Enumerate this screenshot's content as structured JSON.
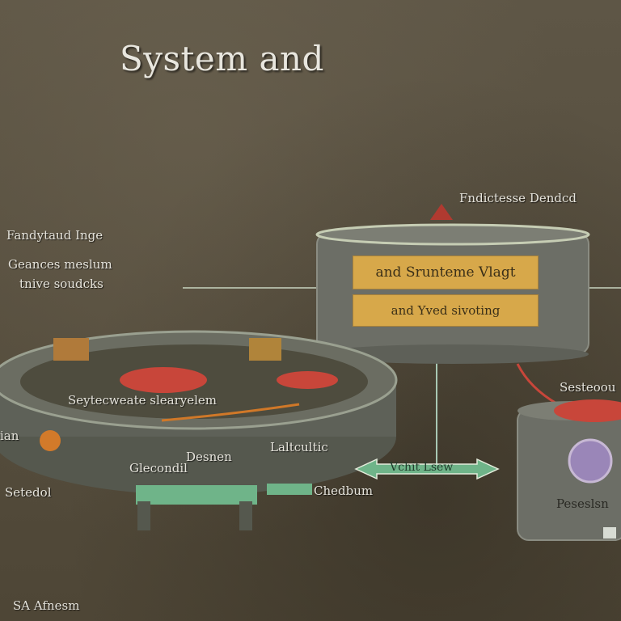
{
  "title": "System and",
  "labels": {
    "top_right": "Fndictesse Dendcd",
    "left_1": "Fandytaud Inge",
    "left_2": "Geances meslum",
    "left_3": "tnive soudcks",
    "tank_line_1": "and Srunteme Vlagt",
    "tank_line_2": "and Yved sivoting",
    "platform_center": "Seytecweate slearyelem",
    "left_edge": "ian",
    "platform_low_1": "Desnen",
    "platform_low_2": "Glecondil",
    "platform_right": "Laltcultic",
    "bottom_left": "Setedol",
    "platform_front": "Chedbum",
    "arrow": "Vchit Lsew",
    "right_top": "Sesteoou",
    "right_bottom": "Peseslsn",
    "corner": "SA Afnesm"
  },
  "colors": {
    "background": "#5a5242",
    "tank": "#6c6e66",
    "banner": "#d7a84a",
    "red_disc": "#c8463a",
    "green_accent": "#6fb489",
    "purple_orb": "#9a86b8"
  }
}
